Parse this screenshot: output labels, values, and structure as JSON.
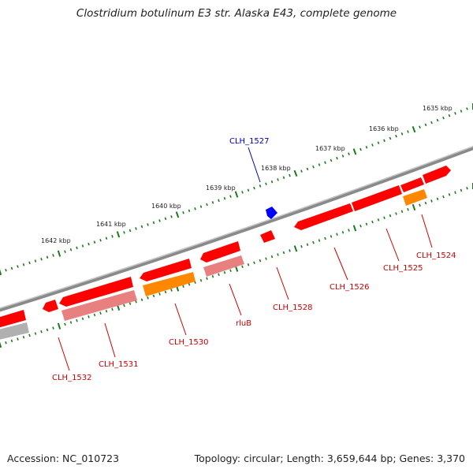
{
  "title": "Clostridium botulinum E3 str. Alaska E43, complete genome",
  "footer": {
    "accession": "Accession: NC_010723",
    "summary": "Topology: circular; Length: 3,659,644 bp; Genes: 3,370"
  },
  "ticks": [
    {
      "label": "1635 kbp"
    },
    {
      "label": "1636 kbp"
    },
    {
      "label": "1637 kbp"
    },
    {
      "label": "1638 kbp"
    },
    {
      "label": "1639 kbp"
    },
    {
      "label": "1640 kbp"
    },
    {
      "label": "1641 kbp"
    },
    {
      "label": "1642 kbp"
    }
  ],
  "genes": [
    {
      "label": "CLH_1524",
      "color": "#cc0000"
    },
    {
      "label": "CLH_1525",
      "color": "#cc0000"
    },
    {
      "label": "CLH_1526",
      "color": "#cc0000"
    },
    {
      "label": "CLH_1527",
      "color": "#0000bb"
    },
    {
      "label": "CLH_1528",
      "color": "#cc0000"
    },
    {
      "label": "rluB",
      "color": "#cc0000"
    },
    {
      "label": "CLH_1530",
      "color": "#cc0000"
    },
    {
      "label": "CLH_1531",
      "color": "#cc0000"
    },
    {
      "label": "CLH_1532",
      "color": "#cc0000"
    }
  ],
  "colors": {
    "cds_forward": "#ff0000",
    "cds_reverse": "#ff0000",
    "rna": "#ff8800",
    "pseudo": "#e88080",
    "other": "#b0b0b0",
    "regulatory": "#0000ff",
    "backbone": "#808080",
    "tick": "#1a7a1a"
  }
}
